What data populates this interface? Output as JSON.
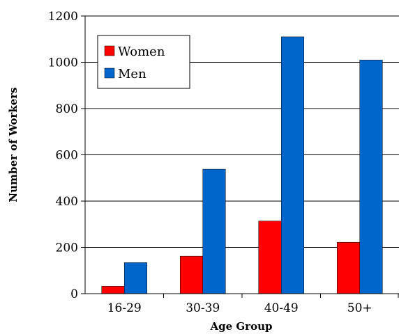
{
  "chart_data": {
    "type": "bar",
    "categories": [
      "16-29",
      "30-39",
      "40-49",
      "50+"
    ],
    "series": [
      {
        "name": "Women",
        "color": "#ff0000",
        "values": [
          32,
          162,
          314,
          222
        ]
      },
      {
        "name": "Men",
        "color": "#0066cc",
        "values": [
          134,
          538,
          1110,
          1010
        ]
      }
    ],
    "xlabel": "Age Group",
    "ylabel": "Number of Workers",
    "ylim": [
      0,
      1200
    ],
    "yticks": [
      "0",
      "200",
      "400",
      "600",
      "800",
      "1000",
      "1200"
    ],
    "grid": true,
    "legend": "top-left"
  }
}
